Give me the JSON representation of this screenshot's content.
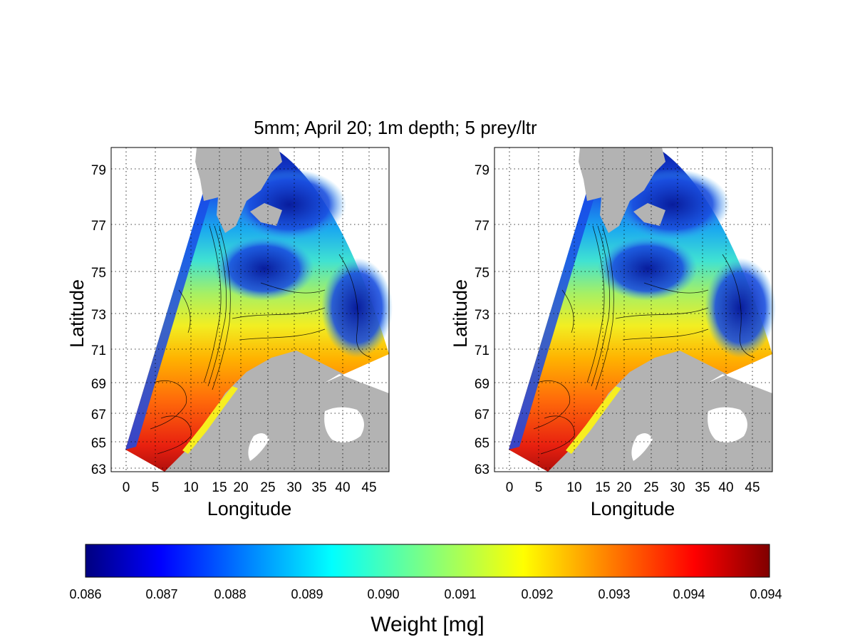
{
  "title": "5mm; April 20; 1m depth; 5 prey/ltr",
  "panels": [
    {
      "xlabel": "Longitude",
      "ylabel": "Latitude",
      "xticks": [
        "0",
        "5",
        "10",
        "15",
        "20",
        "25",
        "30",
        "35",
        "40",
        "45"
      ],
      "yticks": [
        "79",
        "77",
        "75",
        "73",
        "71",
        "69",
        "67",
        "65",
        "63"
      ]
    },
    {
      "xlabel": "Longitude",
      "ylabel": "Latitude",
      "xticks": [
        "0",
        "5",
        "10",
        "15",
        "20",
        "25",
        "30",
        "35",
        "40",
        "45"
      ],
      "yticks": [
        "79",
        "77",
        "75",
        "73",
        "71",
        "69",
        "67",
        "65",
        "63"
      ]
    }
  ],
  "colorbar": {
    "label": "Weight [mg]",
    "ticks": [
      "0.086",
      "0.087",
      "0.088",
      "0.089",
      "0.090",
      "0.091",
      "0.092",
      "0.093",
      "0.094",
      "0.094"
    ],
    "colormap": "jet",
    "land_color": "#b3b3b3"
  }
}
